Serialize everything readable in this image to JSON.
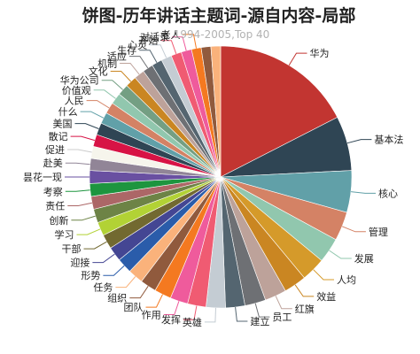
{
  "chart_data": {
    "type": "pie",
    "title": "饼图-历年讲话主题词-源自内容-局部",
    "subtitle": "1994-2005,Top 40",
    "slices": [
      {
        "label": "华为",
        "value": 176,
        "color": "#c23531"
      },
      {
        "label": "基本法",
        "value": 68,
        "color": "#2f4554"
      },
      {
        "label": "核心",
        "value": 52,
        "color": "#61a0a8"
      },
      {
        "label": "管理",
        "value": 36,
        "color": "#d48265"
      },
      {
        "label": "发展",
        "value": 31,
        "color": "#91c7ae"
      },
      {
        "label": "人均",
        "value": 30,
        "color": "#d59a2a"
      },
      {
        "label": "效益",
        "value": 28,
        "color": "#ca8622"
      },
      {
        "label": "红旗",
        "value": 27,
        "color": "#bda29a"
      },
      {
        "label": "员工",
        "value": 26,
        "color": "#6e7074"
      },
      {
        "label": "建立",
        "value": 24,
        "color": "#546570"
      },
      {
        "label": "英雄",
        "value": 24,
        "color": "#c4ccd3"
      },
      {
        "label": "发挥",
        "value": 23,
        "color": "#f05b72"
      },
      {
        "label": "作用",
        "value": 22,
        "color": "#ef5b9c"
      },
      {
        "label": "团队",
        "value": 21,
        "color": "#f47920"
      },
      {
        "label": "组织",
        "value": 20,
        "color": "#905a3d"
      },
      {
        "label": "任务",
        "value": 19,
        "color": "#fab27b"
      },
      {
        "label": "形势",
        "value": 19,
        "color": "#2a5caa"
      },
      {
        "label": "迎接",
        "value": 18,
        "color": "#444693"
      },
      {
        "label": "干部",
        "value": 18,
        "color": "#726930"
      },
      {
        "label": "学习",
        "value": 17,
        "color": "#b2d235"
      },
      {
        "label": "创新",
        "value": 17,
        "color": "#6d8346"
      },
      {
        "label": "责任",
        "value": 16,
        "color": "#ac6767"
      },
      {
        "label": "考察",
        "value": 16,
        "color": "#1d953f"
      },
      {
        "label": "昙花一现",
        "value": 16,
        "color": "#6950a1"
      },
      {
        "label": "赴美",
        "value": 15,
        "color": "#918597"
      },
      {
        "label": "促进",
        "value": 15,
        "color": "#f6f5ec"
      },
      {
        "label": "散记",
        "value": 15,
        "color": "#d71345"
      },
      {
        "label": "美国",
        "value": 15,
        "color": "#2f4554"
      },
      {
        "label": "什么",
        "value": 14,
        "color": "#61a0a8"
      },
      {
        "label": "人民",
        "value": 14,
        "color": "#d48265"
      },
      {
        "label": "价值观",
        "value": 14,
        "color": "#91c7ae"
      },
      {
        "label": "华为公司",
        "value": 14,
        "color": "#749f83"
      },
      {
        "label": "文化",
        "value": 14,
        "color": "#ca8622"
      },
      {
        "label": "机制",
        "value": 13,
        "color": "#bda29a"
      },
      {
        "label": "适应",
        "value": 13,
        "color": "#6e7074"
      },
      {
        "label": "生存",
        "value": 13,
        "color": "#546570"
      },
      {
        "label": "心灵",
        "value": 13,
        "color": "#c4ccd3"
      },
      {
        "label": "开始",
        "value": 13,
        "color": "#f05b72"
      },
      {
        "label": "对话录",
        "value": 13,
        "color": "#ef5b9c"
      },
      {
        "label": "老人",
        "value": 12,
        "color": "#f47920"
      },
      {
        "label": "",
        "value": 12,
        "color": "#905a3d"
      },
      {
        "label": "",
        "value": 12,
        "color": "#fab27b"
      }
    ]
  }
}
